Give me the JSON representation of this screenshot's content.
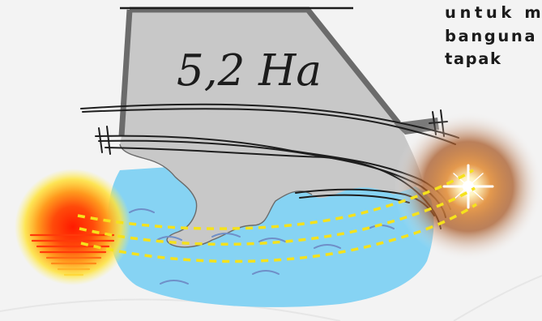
{
  "site_plan": {
    "area_label": "5,2 Ha",
    "caption_lines": [
      "untuk m",
      "banguna",
      "tapak"
    ]
  },
  "colors": {
    "site_fill": "#c8c8c8",
    "site_outline": "#6b6b6b",
    "water": "#86d3f3",
    "wave_lines": "#6f8fc8",
    "sun_path": "#f5e21c",
    "sunset_core": "#ff2a0a",
    "sunrise_glow": "#a85a28",
    "contour_lines": "#1e1e1e"
  },
  "icons": [
    "sunset-icon",
    "sunrise-icon",
    "wave-icon"
  ]
}
